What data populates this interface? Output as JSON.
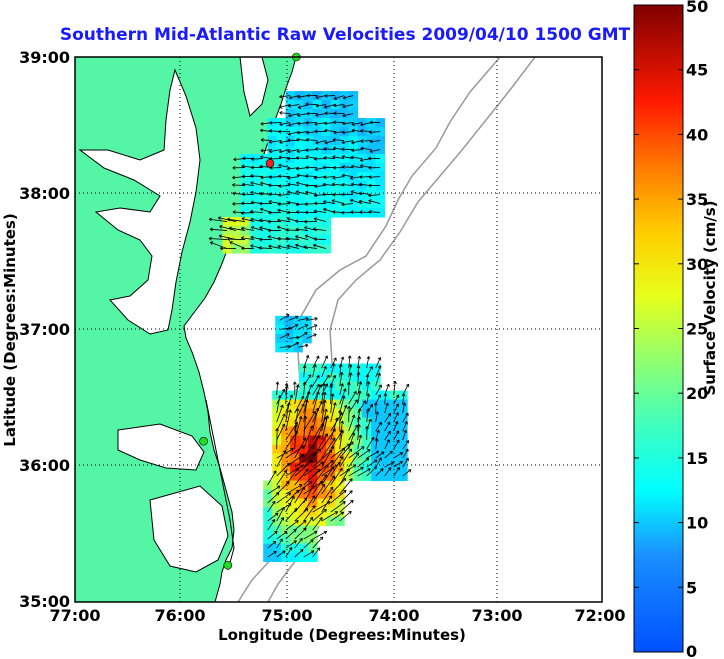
{
  "title": "Southern Mid-Atlantic Raw Velocities 2009/04/10 1500 GMT",
  "xlabel": "Longitude (Degrees:Minutes)",
  "ylabel": "Latitude (Degrees:Minutes)",
  "x_ticks": [
    "77:00",
    "76:00",
    "75:00",
    "74:00",
    "73:00",
    "72:00"
  ],
  "y_ticks": [
    "39:00",
    "38:00",
    "37:00",
    "36:00",
    "35:00"
  ],
  "colorbar": {
    "label": "Surface Velocity (cm/s)",
    "ticks": [
      "0",
      "5",
      "10",
      "15",
      "20",
      "25",
      "30",
      "35",
      "40",
      "45",
      "50"
    ],
    "range": [
      0,
      50
    ]
  },
  "colors": {
    "land": "#55f5a6",
    "coast": "#000000",
    "bathymetry": "#999999",
    "grid": "#000000",
    "station_green": "#22dd22",
    "station_red": "#ee2222",
    "title": "#1a1aff"
  },
  "map_extent": {
    "lon": [
      -77.0,
      -72.0
    ],
    "lat": [
      35.0,
      39.0
    ]
  },
  "stations": [
    {
      "lon": -74.9,
      "lat": 39.0,
      "color": "green"
    },
    {
      "lon": -75.15,
      "lat": 38.22,
      "color": "red"
    },
    {
      "lon": -75.78,
      "lat": 36.18,
      "color": "green"
    },
    {
      "lon": -75.55,
      "lat": 35.27,
      "color": "green"
    }
  ],
  "velocity_regions": [
    {
      "name": "north",
      "lon": [
        -75.6,
        -74.05
      ],
      "lat": [
        37.6,
        38.75
      ],
      "speed_range": [
        5,
        18
      ]
    },
    {
      "name": "middle",
      "lon": [
        -75.1,
        -74.8
      ],
      "lat": [
        36.85,
        37.1
      ],
      "speed_range": [
        8,
        12
      ]
    },
    {
      "name": "south",
      "lon": [
        -75.3,
        -73.9
      ],
      "lat": [
        35.3,
        36.75
      ],
      "speed_range": [
        10,
        50
      ]
    }
  ]
}
